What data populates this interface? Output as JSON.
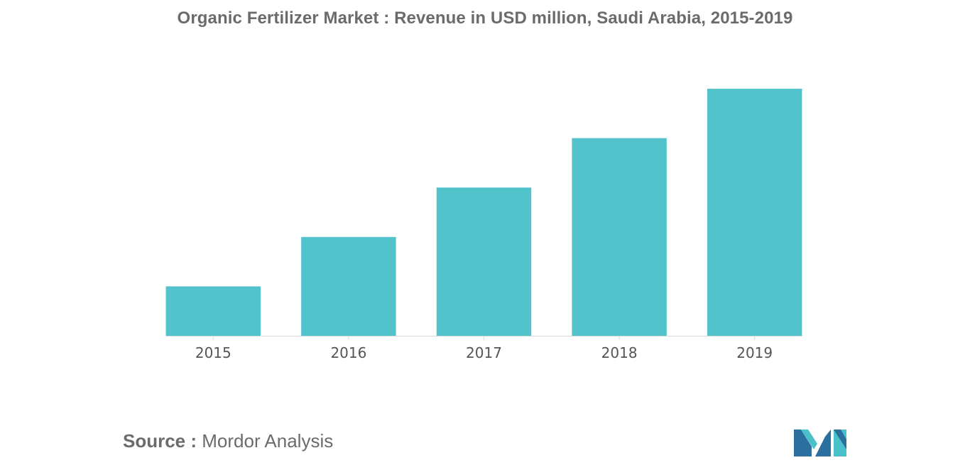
{
  "chart_data": {
    "type": "bar",
    "title": "Organic Fertilizer Market : Revenue in USD million, Saudi Arabia, 2015-2019",
    "xlabel": "",
    "ylabel": "",
    "categories": [
      "2015",
      "2016",
      "2017",
      "2018",
      "2019"
    ],
    "values": [
      1,
      2,
      3,
      4,
      5
    ],
    "ylim": [
      0,
      5
    ],
    "grid": false,
    "legend": "none",
    "bar_color": "#52c3ca"
  },
  "footer": {
    "source_label": "Source :",
    "source_value": "Mordor Analysis"
  },
  "logo": {
    "icon": "mordor-intelligence-logo",
    "colors": [
      "#2a6f9e",
      "#49c1c9"
    ]
  }
}
